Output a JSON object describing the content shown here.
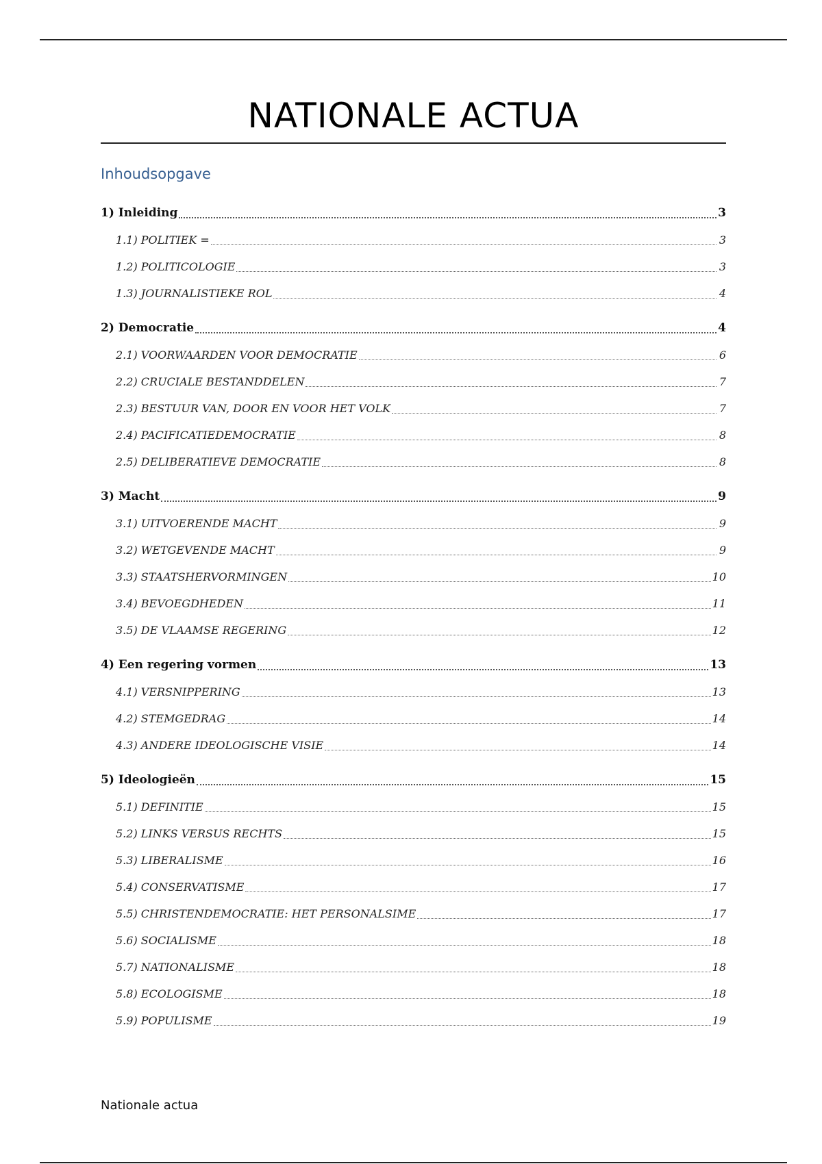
{
  "document": {
    "title": "NATIONALE ACTUA",
    "toc_heading": "Inhoudsopgave",
    "footer": "Nationale actua",
    "colors": {
      "toc_heading": "#365f91"
    },
    "toc": [
      {
        "label": "1) Inleiding",
        "page": "3",
        "items": [
          {
            "label": "1.1) POLITIEK =",
            "page": "3"
          },
          {
            "label": "1.2) POLITICOLOGIE",
            "page": "3"
          },
          {
            "label": "1.3) JOURNALISTIEKE ROL",
            "page": "4"
          }
        ]
      },
      {
        "label": "2) Democratie",
        "page": "4",
        "items": [
          {
            "label": "2.1) VOORWAARDEN VOOR DEMOCRATIE",
            "page": "6"
          },
          {
            "label": "2.2) CRUCIALE BESTANDDELEN",
            "page": "7"
          },
          {
            "label": "2.3) BESTUUR VAN, DOOR EN VOOR HET VOLK",
            "page": "7"
          },
          {
            "label": "2.4) PACIFICATIEDEMOCRATIE",
            "page": "8"
          },
          {
            "label": "2.5) DELIBERATIEVE DEMOCRATIE",
            "page": "8"
          }
        ]
      },
      {
        "label": "3) Macht",
        "page": "9",
        "items": [
          {
            "label": "3.1) UITVOERENDE MACHT",
            "page": "9"
          },
          {
            "label": "3.2) WETGEVENDE MACHT",
            "page": "9"
          },
          {
            "label": "3.3) STAATSHERVORMINGEN",
            "page": "10"
          },
          {
            "label": "3.4) BEVOEGDHEDEN",
            "page": "11"
          },
          {
            "label": "3.5) DE VLAAMSE REGERING",
            "page": "12"
          }
        ]
      },
      {
        "label": "4) Een regering vormen",
        "page": "13",
        "items": [
          {
            "label": "4.1) VERSNIPPERING",
            "page": "13"
          },
          {
            "label": "4.2) STEMGEDRAG",
            "page": "14"
          },
          {
            "label": "4.3) ANDERE IDEOLOGISCHE VISIE",
            "page": "14"
          }
        ]
      },
      {
        "label": "5) Ideologieën",
        "page": "15",
        "items": [
          {
            "label": "5.1) DEFINITIE",
            "page": "15"
          },
          {
            "label": "5.2) LINKS VERSUS RECHTS",
            "page": "15"
          },
          {
            "label": "5.3) LIBERALISME",
            "page": "16"
          },
          {
            "label": "5.4) CONSERVATISME",
            "page": "17"
          },
          {
            "label": "5.5) CHRISTENDEMOCRATIE: HET PERSONALSIME",
            "page": "17"
          },
          {
            "label": "5.6) SOCIALISME",
            "page": "18"
          },
          {
            "label": "5.7) NATIONALISME",
            "page": "18"
          },
          {
            "label": "5.8) ECOLOGISME",
            "page": "18"
          },
          {
            "label": "5.9) POPULISME",
            "page": "19"
          }
        ]
      }
    ]
  }
}
